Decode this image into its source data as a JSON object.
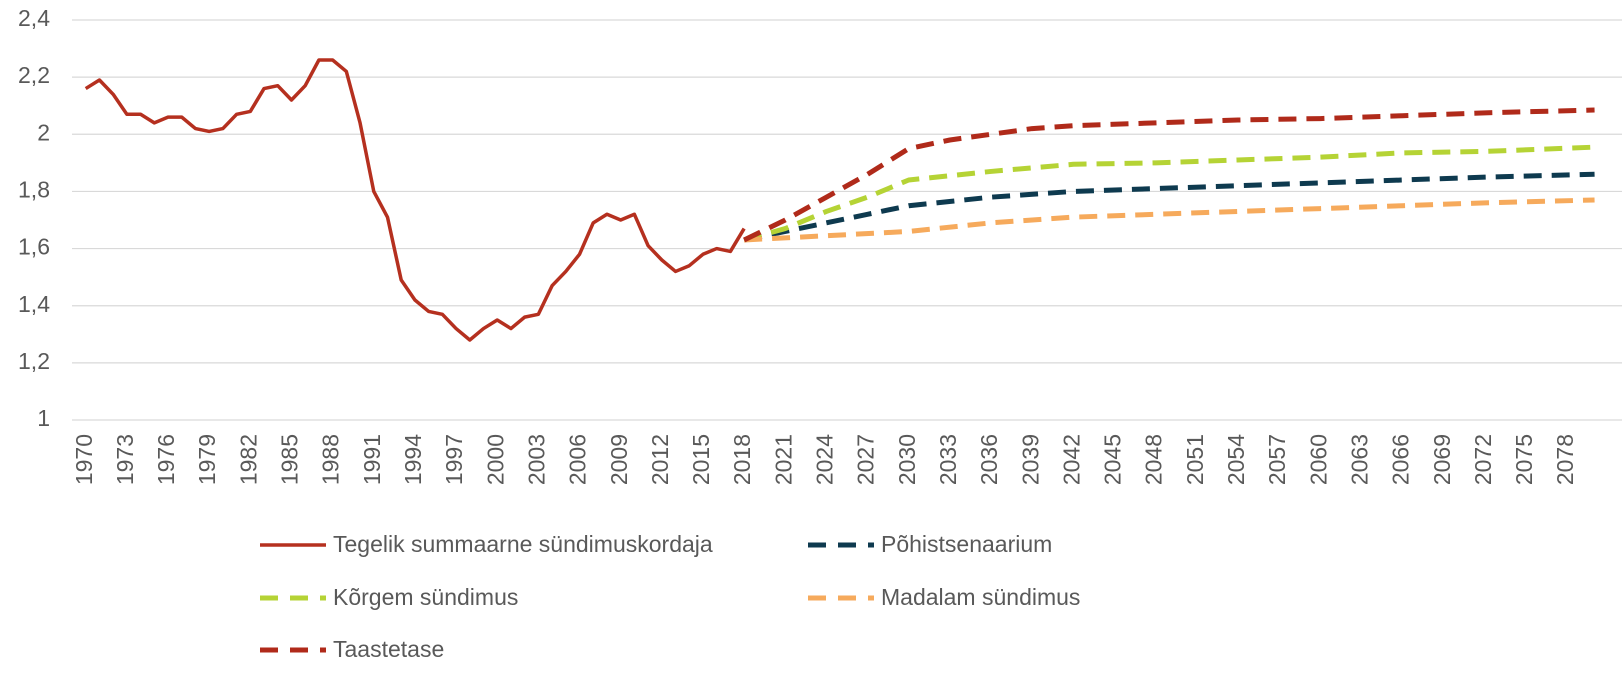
{
  "chart_data": {
    "type": "line",
    "xlim": [
      1969,
      2082
    ],
    "xticks": [
      1970,
      1973,
      1976,
      1979,
      1982,
      1985,
      1988,
      1991,
      1994,
      1997,
      2000,
      2003,
      2006,
      2009,
      2012,
      2015,
      2018,
      2021,
      2024,
      2027,
      2030,
      2033,
      2036,
      2039,
      2042,
      2045,
      2048,
      2051,
      2054,
      2057,
      2060,
      2063,
      2066,
      2069,
      2072,
      2075,
      2078
    ],
    "ylim": [
      1,
      2.4
    ],
    "yticks": [
      1,
      {
        "value": 1.2,
        "label": "1,2"
      },
      {
        "value": 1.4,
        "label": "1,4"
      },
      {
        "value": 1.6,
        "label": "1,6"
      },
      {
        "value": 1.8,
        "label": "1,8"
      },
      2,
      {
        "value": 2.2,
        "label": "2,2"
      },
      {
        "value": 2.4,
        "label": "2,4"
      }
    ],
    "grid": true,
    "legend": "bottom",
    "series": [
      {
        "name": "Tegelik summaarne sündimuskordaja",
        "color": "#b5301f",
        "dashed": false,
        "x": [
          1970,
          1971,
          1972,
          1973,
          1974,
          1975,
          1976,
          1977,
          1978,
          1979,
          1980,
          1981,
          1982,
          1983,
          1984,
          1985,
          1986,
          1987,
          1988,
          1989,
          1990,
          1991,
          1992,
          1993,
          1994,
          1995,
          1996,
          1997,
          1998,
          1999,
          2000,
          2001,
          2002,
          2003,
          2004,
          2005,
          2006,
          2007,
          2008,
          2009,
          2010,
          2011,
          2012,
          2013,
          2014,
          2015,
          2016,
          2017,
          2018
        ],
        "values": [
          2.16,
          2.19,
          2.14,
          2.07,
          2.07,
          2.04,
          2.06,
          2.06,
          2.02,
          2.01,
          2.02,
          2.07,
          2.08,
          2.16,
          2.17,
          2.12,
          2.17,
          2.26,
          2.26,
          2.22,
          2.04,
          1.8,
          1.71,
          1.49,
          1.42,
          1.38,
          1.37,
          1.32,
          1.28,
          1.32,
          1.35,
          1.32,
          1.36,
          1.37,
          1.47,
          1.52,
          1.58,
          1.69,
          1.72,
          1.7,
          1.72,
          1.61,
          1.56,
          1.52,
          1.54,
          1.58,
          1.6,
          1.59,
          1.67
        ]
      },
      {
        "name": "Põhistsenaarium",
        "color": "#0e3a4f",
        "dashed": true,
        "x": [
          2018,
          2021,
          2024,
          2027,
          2030,
          2036,
          2042,
          2048,
          2054,
          2060,
          2066,
          2072,
          2080
        ],
        "values": [
          1.63,
          1.66,
          1.69,
          1.72,
          1.75,
          1.78,
          1.8,
          1.81,
          1.82,
          1.83,
          1.84,
          1.85,
          1.86
        ]
      },
      {
        "name": "Kõrgem sündimus",
        "color": "#b5d335",
        "dashed": true,
        "x": [
          2018,
          2021,
          2024,
          2027,
          2030,
          2036,
          2042,
          2048,
          2054,
          2060,
          2066,
          2072,
          2080
        ],
        "values": [
          1.63,
          1.67,
          1.73,
          1.78,
          1.84,
          1.87,
          1.895,
          1.9,
          1.91,
          1.92,
          1.935,
          1.94,
          1.955
        ]
      },
      {
        "name": "Madalam sündimus",
        "color": "#f6aa5c",
        "dashed": true,
        "x": [
          2018,
          2024,
          2030,
          2036,
          2042,
          2048,
          2054,
          2060,
          2066,
          2072,
          2080
        ],
        "values": [
          1.63,
          1.645,
          1.66,
          1.69,
          1.71,
          1.72,
          1.73,
          1.74,
          1.75,
          1.76,
          1.77
        ]
      },
      {
        "name": "Taastetase",
        "color": "#b02a1a",
        "dashed": true,
        "x": [
          2018,
          2021,
          2024,
          2027,
          2030,
          2033,
          2036,
          2039,
          2042,
          2048,
          2054,
          2060,
          2066,
          2072,
          2080
        ],
        "values": [
          1.63,
          1.7,
          1.78,
          1.86,
          1.95,
          1.98,
          2.0,
          2.02,
          2.03,
          2.04,
          2.05,
          2.055,
          2.065,
          2.075,
          2.085
        ]
      }
    ]
  }
}
